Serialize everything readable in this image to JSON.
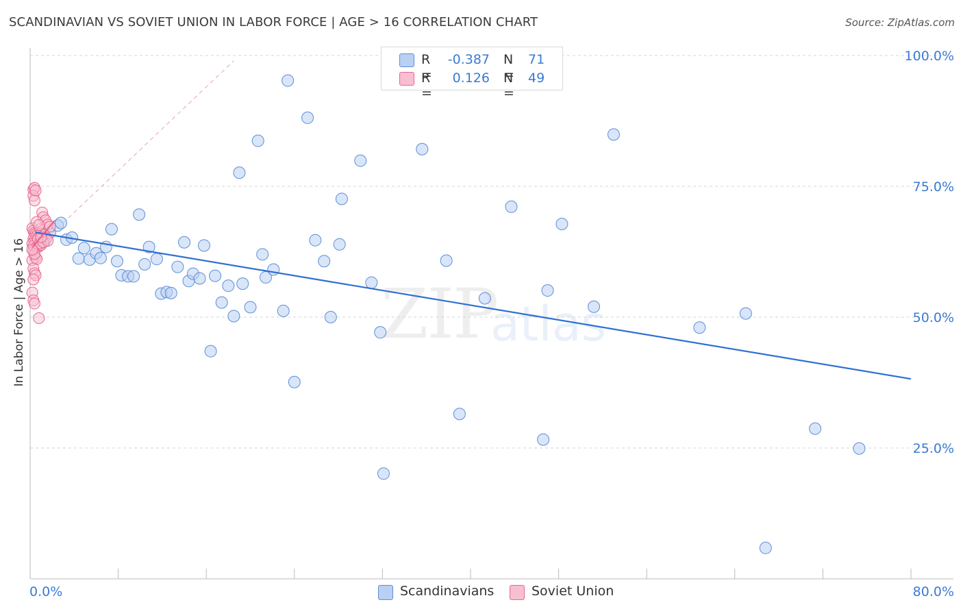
{
  "header": {
    "title": "SCANDINAVIAN VS SOVIET UNION IN LABOR FORCE | AGE > 16 CORRELATION CHART",
    "source": "Source: ZipAtlas.com"
  },
  "legend": {
    "row1": {
      "r_label": "R =",
      "r_value": "-0.387",
      "n_label": "N =",
      "n_value": "71"
    },
    "row2": {
      "r_label": "R =",
      "r_value": "0.126",
      "n_label": "N =",
      "n_value": "49"
    }
  },
  "bottom_legend": {
    "scandinavians": "Scandinavians",
    "soviet": "Soviet Union"
  },
  "watermark": {
    "zip": "ZIP",
    "atlas": "atlas"
  },
  "colors": {
    "blue": "#5b8fd6",
    "blue_fill": "#b9d0f2",
    "pink": "#e8668f",
    "pink_fill": "#f7bfd0",
    "accent": "#3a7bd5"
  },
  "chart_data": {
    "type": "scatter",
    "title": "SCANDINAVIAN VS SOVIET UNION IN LABOR FORCE | AGE > 16 CORRELATION CHART",
    "xlabel": "",
    "ylabel": "In Labor Force | Age > 16",
    "xlim": [
      0,
      80
    ],
    "ylim": [
      0,
      102
    ],
    "x_tick_labels": [
      "0.0%",
      "80.0%"
    ],
    "y_tick_labels": [
      "25.0%",
      "50.0%",
      "75.0%",
      "100.0%"
    ],
    "y_ticks": [
      25,
      50,
      75,
      100
    ],
    "series": [
      {
        "name": "Scandinavians",
        "r": -0.387,
        "n": 71,
        "trend": {
          "x": [
            0.5,
            80
          ],
          "y": [
            66.2,
            38.2
          ]
        },
        "points": [
          [
            1.1,
            65.0
          ],
          [
            1.3,
            64.5
          ],
          [
            1.8,
            66.2
          ],
          [
            2.5,
            67.5
          ],
          [
            2.8,
            68.0
          ],
          [
            3.3,
            64.8
          ],
          [
            3.8,
            65.2
          ],
          [
            4.4,
            61.2
          ],
          [
            4.9,
            63.2
          ],
          [
            5.4,
            61.0
          ],
          [
            6.0,
            62.2
          ],
          [
            6.4,
            61.3
          ],
          [
            6.9,
            63.4
          ],
          [
            7.4,
            66.8
          ],
          [
            7.9,
            60.7
          ],
          [
            8.3,
            58.0
          ],
          [
            8.9,
            57.8
          ],
          [
            9.4,
            57.8
          ],
          [
            9.9,
            69.6
          ],
          [
            10.4,
            60.1
          ],
          [
            10.8,
            63.4
          ],
          [
            11.5,
            61.1
          ],
          [
            11.9,
            54.5
          ],
          [
            12.4,
            54.8
          ],
          [
            12.8,
            54.6
          ],
          [
            13.4,
            59.6
          ],
          [
            14.0,
            64.3
          ],
          [
            14.4,
            56.9
          ],
          [
            14.8,
            58.3
          ],
          [
            15.4,
            57.4
          ],
          [
            15.8,
            63.7
          ],
          [
            16.4,
            43.5
          ],
          [
            16.8,
            57.9
          ],
          [
            17.4,
            52.8
          ],
          [
            18.0,
            56.0
          ],
          [
            18.5,
            50.2
          ],
          [
            19.0,
            77.6
          ],
          [
            19.3,
            56.4
          ],
          [
            20.0,
            51.9
          ],
          [
            20.7,
            83.7
          ],
          [
            21.1,
            62.0
          ],
          [
            21.4,
            57.6
          ],
          [
            22.1,
            59.1
          ],
          [
            23.0,
            51.2
          ],
          [
            23.4,
            95.2
          ],
          [
            24.0,
            37.6
          ],
          [
            25.2,
            88.1
          ],
          [
            25.9,
            64.7
          ],
          [
            26.7,
            60.7
          ],
          [
            27.3,
            50.0
          ],
          [
            28.1,
            63.9
          ],
          [
            28.3,
            72.6
          ],
          [
            30.0,
            79.9
          ],
          [
            31.0,
            56.6
          ],
          [
            31.8,
            47.1
          ],
          [
            32.1,
            20.1
          ],
          [
            35.6,
            82.1
          ],
          [
            37.8,
            60.8
          ],
          [
            39.0,
            31.5
          ],
          [
            41.3,
            53.6
          ],
          [
            43.7,
            71.1
          ],
          [
            46.6,
            26.6
          ],
          [
            48.3,
            67.8
          ],
          [
            51.2,
            52.0
          ],
          [
            53.0,
            84.9
          ],
          [
            65.0,
            50.7
          ],
          [
            66.8,
            5.9
          ],
          [
            71.3,
            28.7
          ],
          [
            75.3,
            24.9
          ],
          [
            60.8,
            48.0
          ],
          [
            47.0,
            55.1
          ]
        ]
      },
      {
        "name": "Soviet Union",
        "r": 0.126,
        "n": 49,
        "trend": {
          "x": [
            0.2,
            2.2
          ],
          "y": [
            63.3,
            68.4
          ]
        },
        "points": [
          [
            0.3,
            74.4
          ],
          [
            0.4,
            74.7
          ],
          [
            0.3,
            73.2
          ],
          [
            0.4,
            72.3
          ],
          [
            0.5,
            74.2
          ],
          [
            0.2,
            67.0
          ],
          [
            0.3,
            66.5
          ],
          [
            0.4,
            66.1
          ],
          [
            0.5,
            65.9
          ],
          [
            0.6,
            65.6
          ],
          [
            0.3,
            65.0
          ],
          [
            0.4,
            64.7
          ],
          [
            0.5,
            64.4
          ],
          [
            0.2,
            64.0
          ],
          [
            0.3,
            63.6
          ],
          [
            0.6,
            63.4
          ],
          [
            0.8,
            63.5
          ],
          [
            1.0,
            63.8
          ],
          [
            0.3,
            62.6
          ],
          [
            0.4,
            61.8
          ],
          [
            0.5,
            61.4
          ],
          [
            0.2,
            60.9
          ],
          [
            0.6,
            61.1
          ],
          [
            0.3,
            59.3
          ],
          [
            0.4,
            58.4
          ],
          [
            0.5,
            58.0
          ],
          [
            0.3,
            57.2
          ],
          [
            0.2,
            54.7
          ],
          [
            0.3,
            53.2
          ],
          [
            0.4,
            52.6
          ],
          [
            0.8,
            49.8
          ],
          [
            1.1,
            70.0
          ],
          [
            1.2,
            69.1
          ],
          [
            1.4,
            68.5
          ],
          [
            1.6,
            67.7
          ],
          [
            1.8,
            67.3
          ],
          [
            0.9,
            66.8
          ],
          [
            1.0,
            66.0
          ],
          [
            1.3,
            65.7
          ],
          [
            1.5,
            65.1
          ],
          [
            0.7,
            64.9
          ],
          [
            0.9,
            64.1
          ],
          [
            1.2,
            64.3
          ],
          [
            1.6,
            64.6
          ],
          [
            0.6,
            68.2
          ],
          [
            0.8,
            67.6
          ],
          [
            1.0,
            65.3
          ],
          [
            0.4,
            62.1
          ],
          [
            0.2,
            62.9
          ]
        ]
      }
    ]
  }
}
